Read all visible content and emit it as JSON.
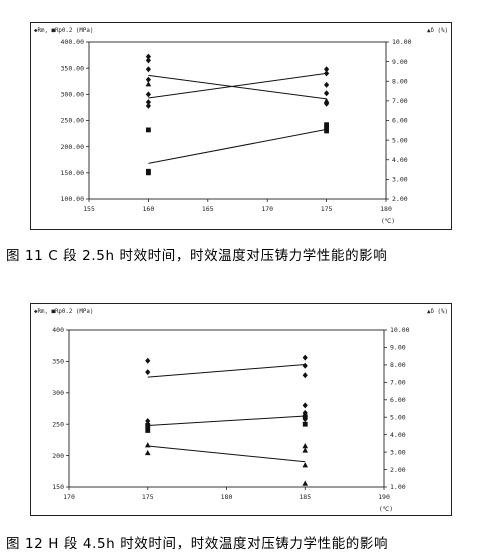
{
  "figures": [
    {
      "caption": "图 11  C 段 2.5h 时效时间，时效温度对压铸力学性能的影响",
      "chart_data": {
        "type": "scatter",
        "left_legend": "◆Rm, ■Rp0.2 (MPa)",
        "right_legend": "▲δ (%)",
        "x_unit": "(℃)",
        "xlim": [
          155,
          180
        ],
        "x_ticks": [
          "155",
          "160",
          "165",
          "170",
          "175",
          "180"
        ],
        "ylim": [
          100,
          400
        ],
        "y_ticks": [
          "100.00",
          "150.00",
          "200.00",
          "250.00",
          "300.00",
          "350.00",
          "400.00"
        ],
        "y2lim": [
          2,
          10
        ],
        "y2_ticks": [
          "2.00",
          "3.00",
          "4.00",
          "5.00",
          "6.00",
          "7.00",
          "8.00",
          "9.00",
          "10.00"
        ],
        "series": [
          {
            "marker": "diamond",
            "axis": "left",
            "points": [
              [
                160,
                372
              ],
              [
                160,
                365
              ],
              [
                160,
                348
              ],
              [
                160,
                328
              ],
              [
                160,
                300
              ],
              [
                160,
                285
              ],
              [
                160,
                278
              ],
              [
                175,
                348
              ],
              [
                175,
                340
              ],
              [
                175,
                318
              ],
              [
                175,
                302
              ],
              [
                175,
                282
              ]
            ],
            "fit": [
              [
                160,
                293
              ],
              [
                175,
                340
              ]
            ]
          },
          {
            "marker": "square",
            "axis": "left",
            "points": [
              [
                160,
                232
              ],
              [
                160,
                153
              ],
              [
                160,
                150
              ],
              [
                175,
                242
              ],
              [
                175,
                236
              ],
              [
                175,
                230
              ]
            ],
            "fit": [
              [
                160,
                168
              ],
              [
                175,
                233
              ]
            ]
          },
          {
            "marker": "triangle",
            "axis": "right",
            "points": [
              [
                160,
                7.85
              ],
              [
                175,
                7.0
              ]
            ],
            "fit": [
              [
                160,
                8.3
              ],
              [
                175,
                7.1
              ]
            ]
          }
        ]
      }
    },
    {
      "caption": "图 12  H 段 4.5h 时效时间，时效温度对压铸力学性能的影响",
      "chart_data": {
        "type": "scatter",
        "left_legend": "◆Rm, ■Rp0.2 (MPa)",
        "right_legend": "▲δ (%)",
        "x_unit": "(℃)",
        "xlim": [
          170,
          190
        ],
        "x_ticks": [
          "170",
          "175",
          "180",
          "185",
          "190"
        ],
        "ylim": [
          150,
          400
        ],
        "y_ticks": [
          "150",
          "200",
          "250",
          "300",
          "350",
          "400"
        ],
        "y2lim": [
          1,
          10
        ],
        "y2_ticks": [
          "1.00",
          "2.00",
          "3.00",
          "4.00",
          "5.00",
          "6.00",
          "7.00",
          "8.00",
          "9.00",
          "10.00"
        ],
        "series": [
          {
            "marker": "diamond",
            "axis": "left",
            "points": [
              [
                175,
                351
              ],
              [
                175,
                333
              ],
              [
                185,
                356
              ],
              [
                185,
                343
              ],
              [
                185,
                328
              ],
              [
                175,
                255
              ],
              [
                175,
                250
              ],
              [
                175,
                244
              ],
              [
                185,
                280
              ],
              [
                185,
                268
              ],
              [
                185,
                262
              ],
              [
                185,
                258
              ]
            ],
            "fit": [
              [
                175,
                325
              ],
              [
                185,
                345
              ]
            ]
          },
          {
            "marker": "square",
            "axis": "left",
            "points": [
              [
                175,
                248
              ],
              [
                175,
                240
              ],
              [
                185,
                262
              ],
              [
                185,
                250
              ]
            ],
            "fit": [
              [
                175,
                248
              ],
              [
                185,
                263
              ]
            ]
          },
          {
            "marker": "triangle",
            "axis": "right",
            "points": [
              [
                175,
                3.4
              ],
              [
                175,
                2.95
              ],
              [
                185,
                3.35
              ],
              [
                185,
                3.1
              ],
              [
                185,
                2.25
              ],
              [
                185,
                1.2
              ]
            ],
            "fit": [
              [
                175,
                3.35
              ],
              [
                185,
                2.45
              ]
            ]
          }
        ]
      }
    }
  ]
}
